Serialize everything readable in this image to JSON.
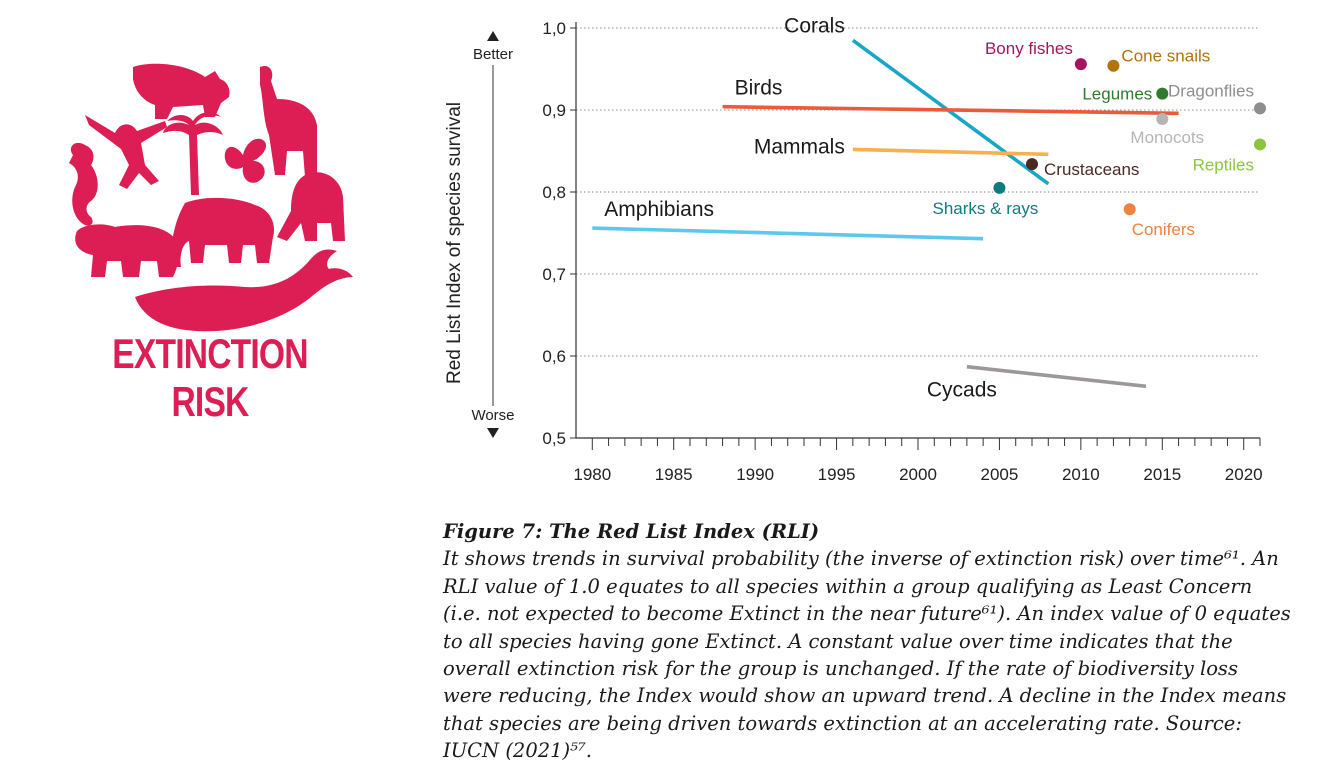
{
  "logo": {
    "title": "EXTINCTION RISK",
    "icon": "animal-silhouettes-circle",
    "color": "#dc1e54"
  },
  "chart_data": {
    "type": "line",
    "ylabel": "Red List Index of species survival",
    "better_label": "Better",
    "worse_label": "Worse",
    "ylim": [
      0.5,
      1.0
    ],
    "xlim": [
      1979,
      2021
    ],
    "y_ticks": [
      {
        "v": 1.0,
        "label": "1,0"
      },
      {
        "v": 0.9,
        "label": "0,9"
      },
      {
        "v": 0.8,
        "label": "0,8"
      },
      {
        "v": 0.7,
        "label": "0,7"
      },
      {
        "v": 0.6,
        "label": "0,6"
      },
      {
        "v": 0.5,
        "label": "0,5"
      }
    ],
    "x_ticks": [
      1980,
      1985,
      1990,
      1995,
      2000,
      2005,
      2010,
      2015,
      2020
    ],
    "grid": "horizontal dotted",
    "series": [
      {
        "name": "Corals",
        "color": "#16a6c8",
        "x": [
          1996,
          2008
        ],
        "y": [
          0.985,
          0.81
        ]
      },
      {
        "name": "Birds",
        "color": "#ec5a3c",
        "x": [
          1988,
          2016
        ],
        "y": [
          0.904,
          0.896
        ]
      },
      {
        "name": "Mammals",
        "color": "#f6b04f",
        "x": [
          1996,
          2008
        ],
        "y": [
          0.852,
          0.846
        ]
      },
      {
        "name": "Amphibians",
        "color": "#5cc8ee",
        "x": [
          1980,
          2004
        ],
        "y": [
          0.756,
          0.743
        ]
      },
      {
        "name": "Cycads",
        "color": "#9e9797",
        "x": [
          2003,
          2014
        ],
        "y": [
          0.587,
          0.563
        ]
      }
    ],
    "points": [
      {
        "name": "Bony fishes",
        "x": 2010,
        "y": 0.956,
        "color": "#a7135f"
      },
      {
        "name": "Cone snails",
        "x": 2012,
        "y": 0.954,
        "color": "#b2720c"
      },
      {
        "name": "Legumes",
        "x": 2015,
        "y": 0.92,
        "color": "#2f7a2c"
      },
      {
        "name": "Dragonflies",
        "x": 2021,
        "y": 0.902,
        "color": "#8f8e8e"
      },
      {
        "name": "Monocots",
        "x": 2015,
        "y": 0.889,
        "color": "#b5b5b5"
      },
      {
        "name": "Reptiles",
        "x": 2021,
        "y": 0.858,
        "color": "#8cc63f"
      },
      {
        "name": "Crustaceans",
        "x": 2007,
        "y": 0.834,
        "color": "#4a2a22"
      },
      {
        "name": "Sharks & rays",
        "x": 2005,
        "y": 0.805,
        "color": "#0e7c80"
      },
      {
        "name": "Conifers",
        "x": 2013,
        "y": 0.779,
        "color": "#ef8340"
      }
    ]
  },
  "caption": {
    "title": "Figure 7: The Red List Index (RLI)",
    "body": "It shows trends in survival probability (the inverse of extinction risk) over time⁶¹. An RLI value of 1.0 equates to all species within a group qualifying as Least Concern (i.e. not expected to become Extinct in the near future⁶¹). An index value of 0 equates to all species having gone Extinct. A constant value over time indicates that the overall extinction risk for the group is unchanged. If the rate of biodiversity loss were reducing, the Index would show an upward trend. A decline in the Index means that species are being driven towards extinction at an accelerating rate. Source: IUCN (2021)⁵⁷."
  }
}
